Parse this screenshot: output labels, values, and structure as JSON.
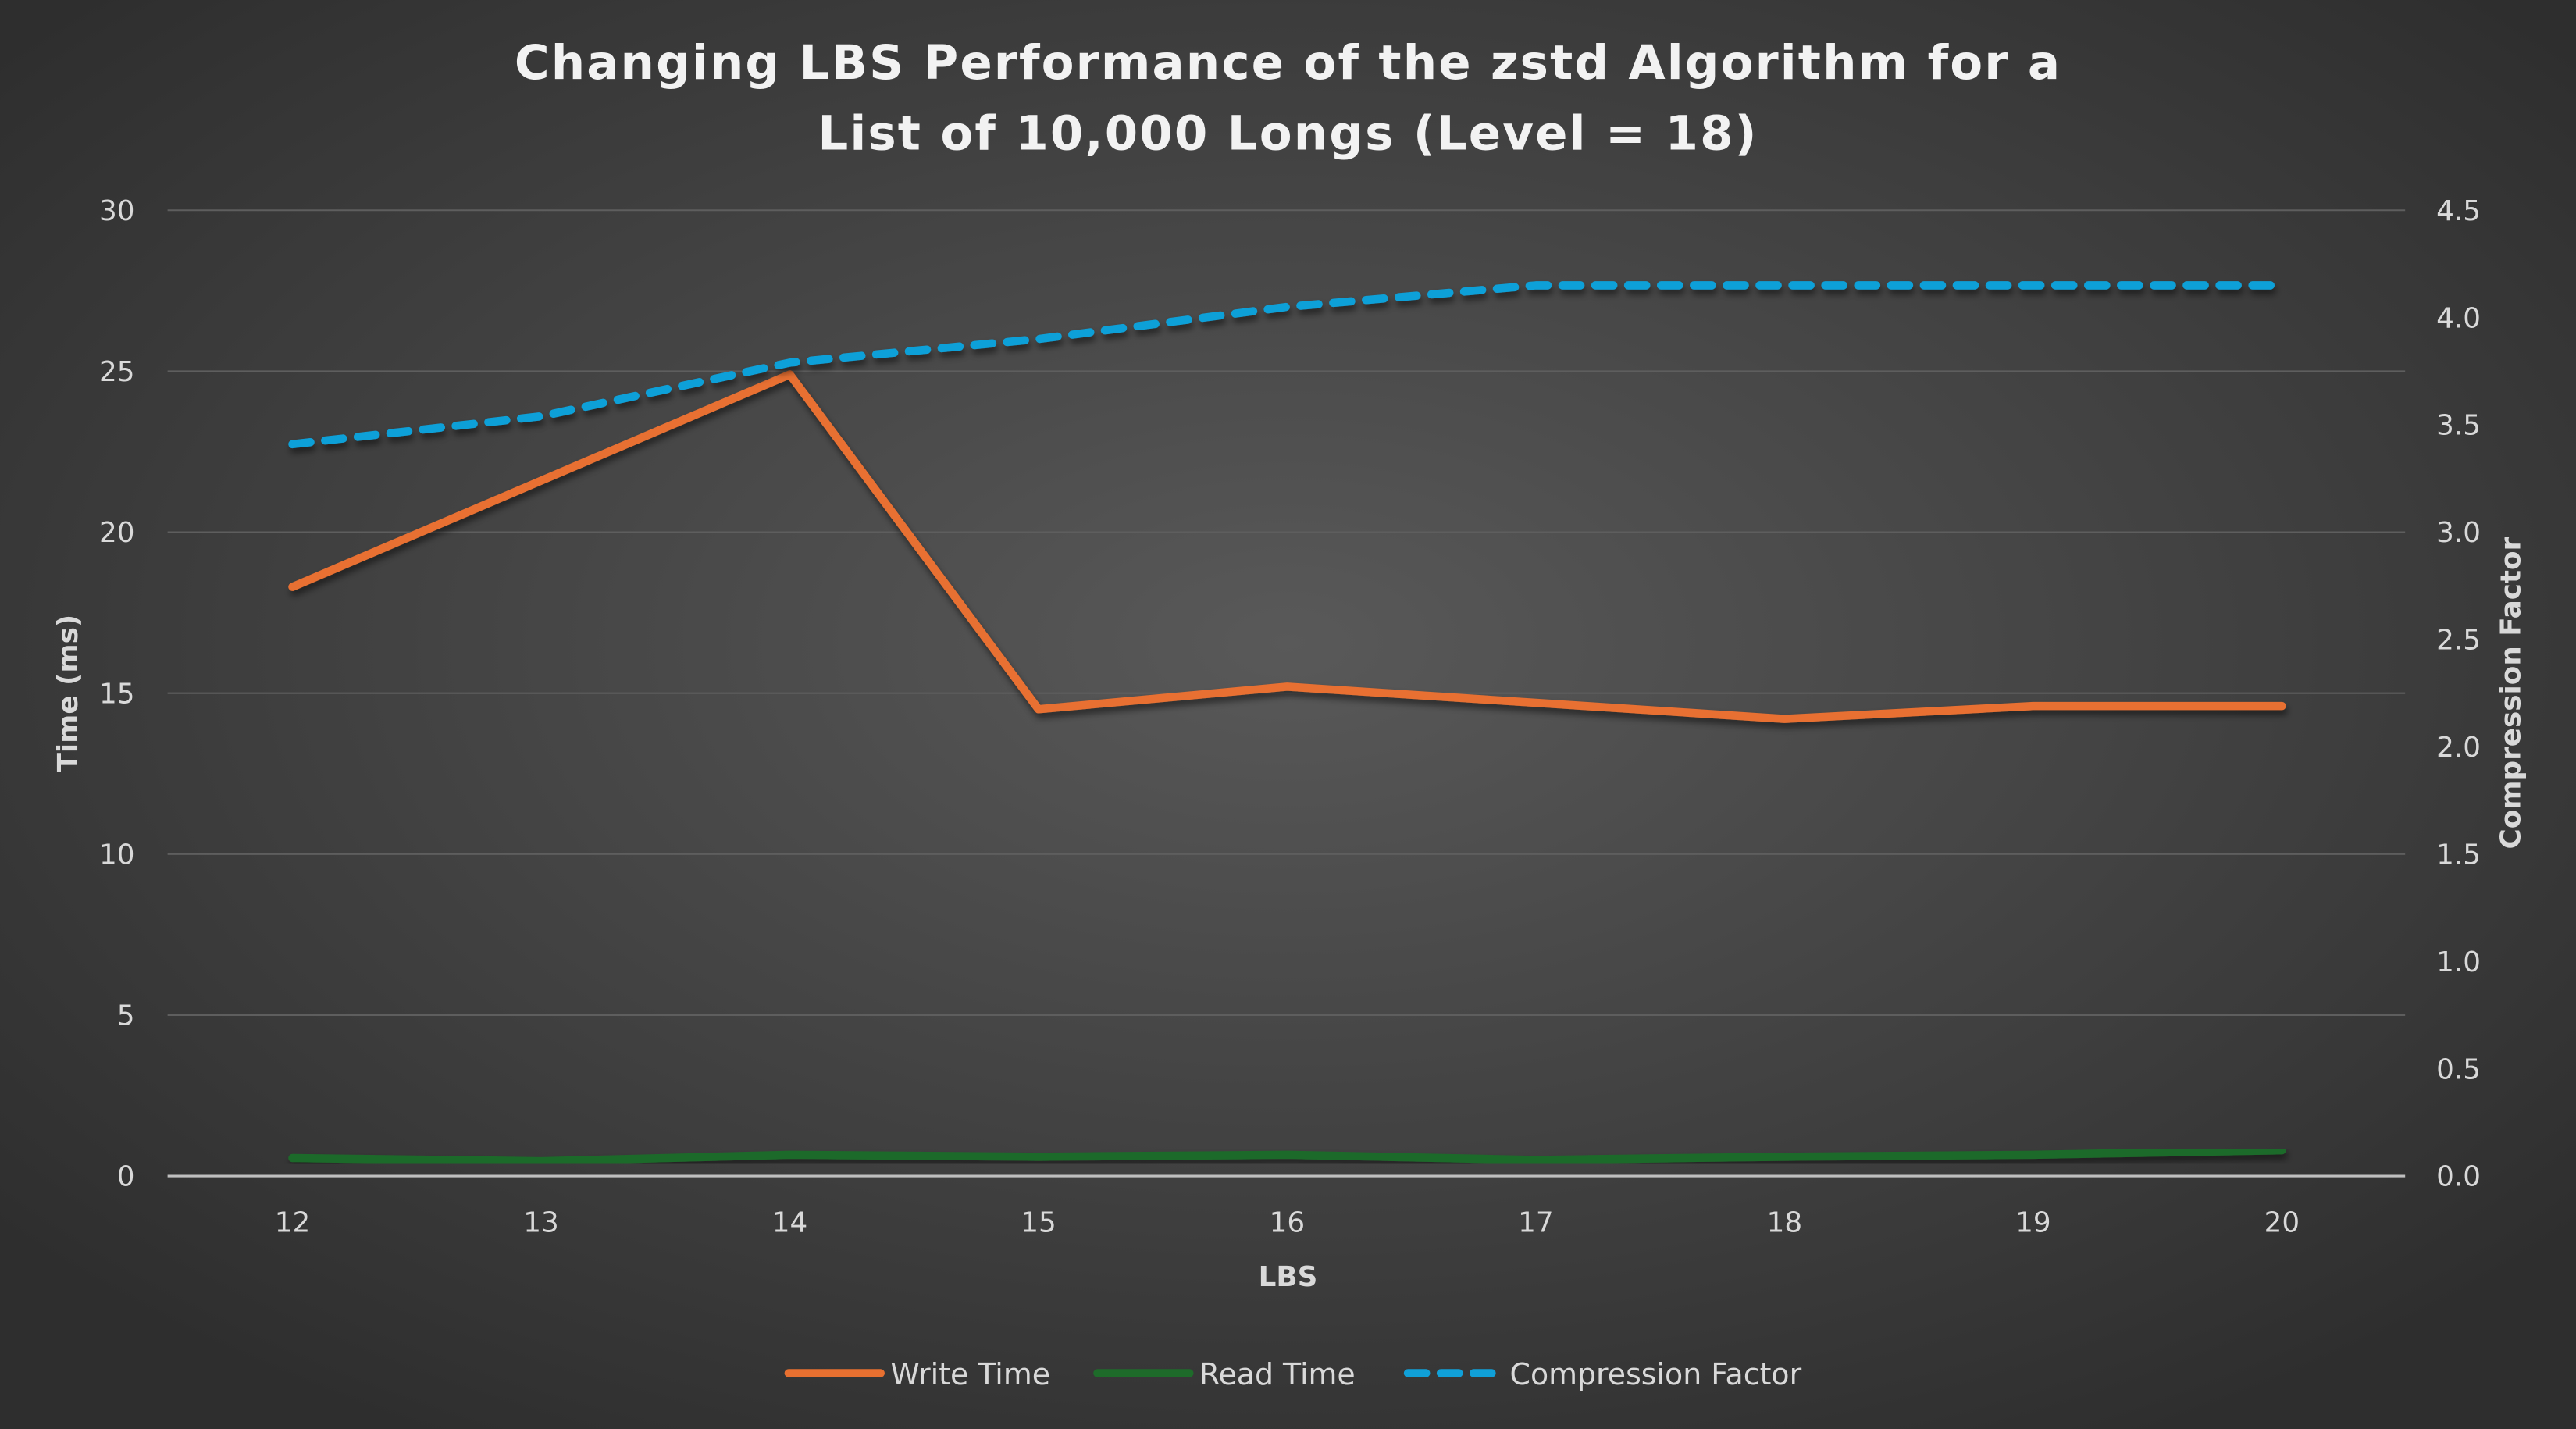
{
  "chart_data": {
    "type": "line",
    "title": [
      "Changing LBS Performance of the zstd Algorithm for a",
      "List of 10,000 Longs (Level = 18)"
    ],
    "xlabel": "LBS",
    "ylabel": "Time (ms)",
    "y2label": "Compression Factor",
    "x": [
      12,
      13,
      14,
      15,
      16,
      17,
      18,
      19,
      20
    ],
    "ylim": [
      0,
      30
    ],
    "yticks": [
      "0",
      "5",
      "10",
      "15",
      "20",
      "25",
      "30"
    ],
    "y2lim": [
      0,
      4.5
    ],
    "y2ticks": [
      "0.0",
      "0.5",
      "1.0",
      "1.5",
      "2.0",
      "2.5",
      "3.0",
      "3.5",
      "4.0",
      "4.5"
    ],
    "grid": true,
    "legend": "bottom",
    "series": [
      {
        "name": "Write Time",
        "axis": "left",
        "color": "#e87030",
        "dash": false,
        "values": [
          18.3,
          21.6,
          24.9,
          14.5,
          15.2,
          14.7,
          14.2,
          14.6,
          14.6
        ]
      },
      {
        "name": "Read Time",
        "axis": "left",
        "color": "#1e6b2a",
        "dash": false,
        "values": [
          0.56,
          0.46,
          0.66,
          0.6,
          0.66,
          0.5,
          0.6,
          0.66,
          0.8
        ]
      },
      {
        "name": "Compression Factor",
        "axis": "right",
        "color": "#10a0d8",
        "dash": true,
        "values": [
          3.41,
          3.54,
          3.79,
          3.9,
          4.05,
          4.15,
          4.15,
          4.15,
          4.15
        ]
      }
    ]
  }
}
